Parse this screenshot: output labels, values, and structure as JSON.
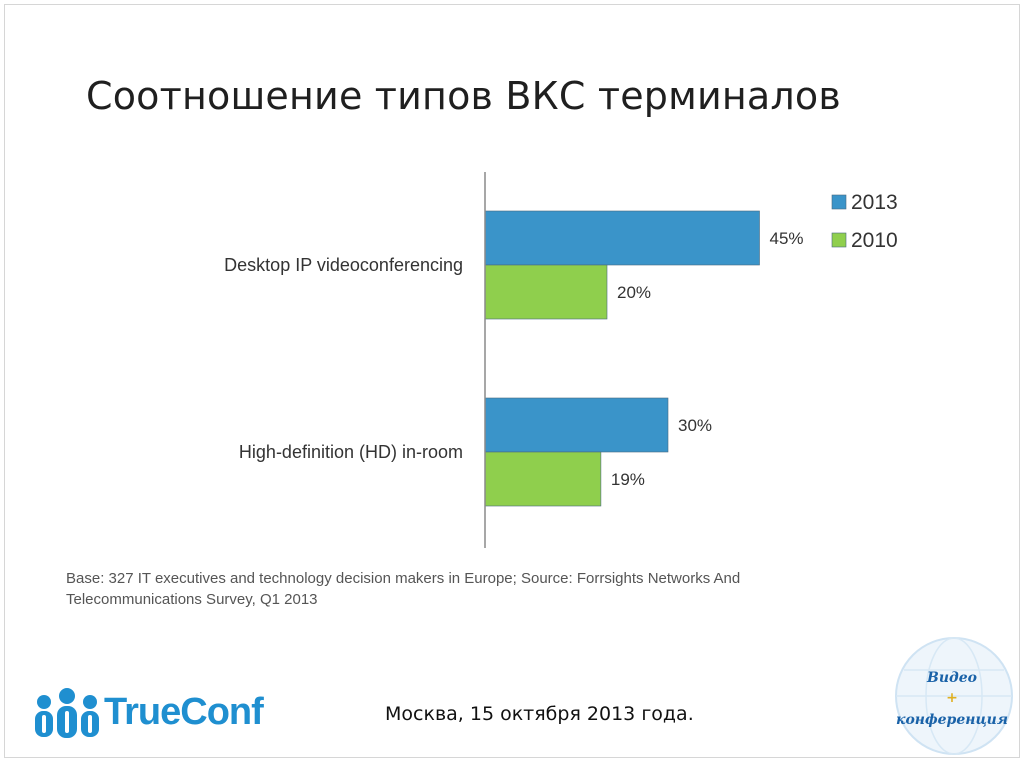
{
  "slide": {
    "title": "Соотношение типов ВКС терминалов",
    "source_note": "Base: 327 IT executives and technology decision makers in Europe; Source: Forrsights Networks And Telecommunications Survey, Q1 2013",
    "footer_date": "Москва, 15 октября 2013 года."
  },
  "logo": {
    "text_true": "True",
    "text_conf": "Conf",
    "color": "#1f8fd0"
  },
  "badge": {
    "line1": "Видео",
    "line2": "+",
    "line3": "конференция"
  },
  "colors": {
    "series_2013": "#3a94c9",
    "series_2010": "#8fcf4d",
    "axis": "#8a8a8a",
    "label": "#333333"
  },
  "chart_data": {
    "type": "bar",
    "orientation": "horizontal",
    "categories": [
      "Desktop IP videoconferencing",
      "High-definition (HD) in-room"
    ],
    "series": [
      {
        "name": "2013",
        "values": [
          45,
          30
        ],
        "labels": [
          "45%",
          "30%"
        ]
      },
      {
        "name": "2010",
        "values": [
          20,
          19
        ],
        "labels": [
          "20%",
          "19%"
        ]
      }
    ],
    "xlim": [
      0,
      100
    ],
    "legend": "top-right",
    "grid": false
  }
}
